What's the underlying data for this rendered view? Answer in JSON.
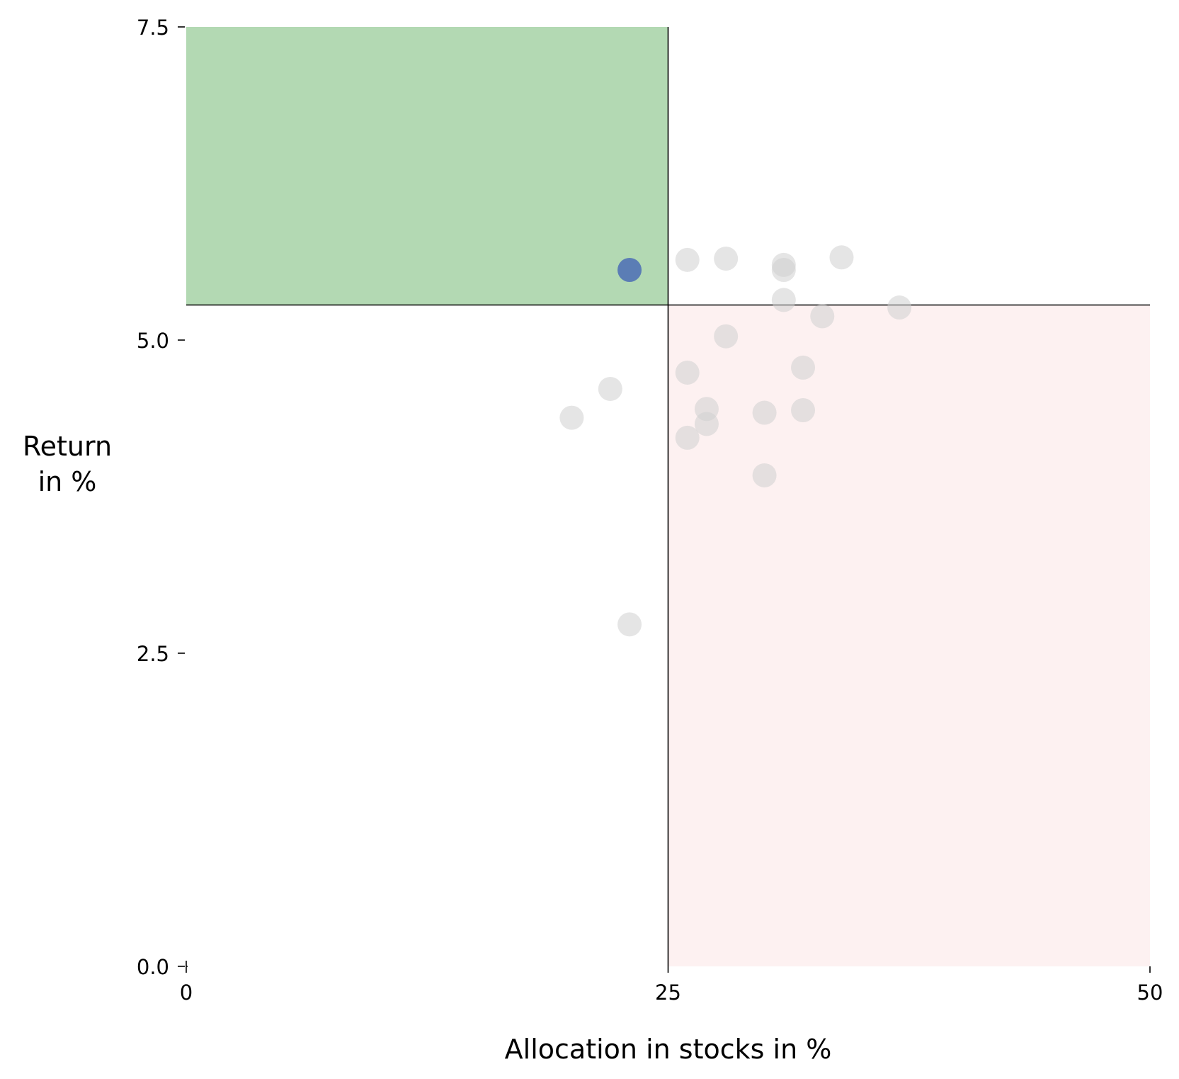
{
  "chart_data": {
    "type": "scatter",
    "xlabel": "Allocation in stocks in %",
    "ylabel_lines": [
      "Return",
      "in %"
    ],
    "xlim": [
      0,
      50
    ],
    "ylim": [
      0,
      7.5
    ],
    "x_ticks": [
      0,
      25,
      50
    ],
    "x_tick_labels": [
      "0",
      "25",
      "50"
    ],
    "y_ticks": [
      0,
      2.5,
      5,
      7.5
    ],
    "y_tick_labels": [
      "0.0",
      "2.5",
      "5.0",
      "7.5"
    ],
    "grid": false,
    "reference": {
      "x": 25,
      "y": 5.28
    },
    "regions": [
      {
        "name": "better-region",
        "x": [
          0,
          25
        ],
        "y": [
          5.28,
          7.5
        ],
        "color": "#b3d9b3"
      },
      {
        "name": "worse-region",
        "x": [
          25,
          50
        ],
        "y": [
          0,
          5.28
        ],
        "color": "#fdf1f1"
      }
    ],
    "highlight_color": "#5b7db5",
    "other_color": "#d0d0d0",
    "series": [
      {
        "role": "highlight",
        "points": [
          {
            "x": 23.0,
            "y": 5.56
          }
        ]
      },
      {
        "role": "other",
        "points": [
          {
            "x": 26.0,
            "y": 5.64
          },
          {
            "x": 28.0,
            "y": 5.65
          },
          {
            "x": 31.0,
            "y": 5.6
          },
          {
            "x": 31.0,
            "y": 5.56
          },
          {
            "x": 34.0,
            "y": 5.66
          },
          {
            "x": 31.0,
            "y": 5.32
          },
          {
            "x": 33.0,
            "y": 5.19
          },
          {
            "x": 37.0,
            "y": 5.26
          },
          {
            "x": 28.0,
            "y": 5.03
          },
          {
            "x": 26.0,
            "y": 4.74
          },
          {
            "x": 32.0,
            "y": 4.78
          },
          {
            "x": 22.0,
            "y": 4.61
          },
          {
            "x": 20.0,
            "y": 4.38
          },
          {
            "x": 27.0,
            "y": 4.45
          },
          {
            "x": 27.0,
            "y": 4.33
          },
          {
            "x": 30.0,
            "y": 4.42
          },
          {
            "x": 32.0,
            "y": 4.44
          },
          {
            "x": 26.0,
            "y": 4.22
          },
          {
            "x": 30.0,
            "y": 3.92
          },
          {
            "x": 23.0,
            "y": 2.73
          }
        ]
      }
    ]
  }
}
